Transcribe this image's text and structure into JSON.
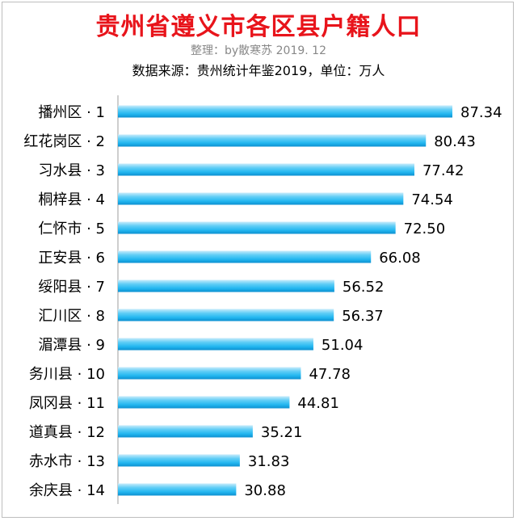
{
  "header": {
    "title": "贵州省遵义市各区县户籍人口",
    "subtitle": "整理：by散寒苏 2019. 12",
    "source": "数据来源：贵州统计年鉴2019，单位：万人"
  },
  "colors": {
    "title": "#e8141b",
    "bar_light": "#c9ecfb",
    "bar_mid": "#23b7f0",
    "bar_dark": "#0c8fd0",
    "axis": "#9e9e9e"
  },
  "chart_data": {
    "type": "bar",
    "orientation": "horizontal",
    "title": "贵州省遵义市各区县户籍人口",
    "xlabel": "",
    "ylabel": "",
    "xlim": [
      0,
      87.34
    ],
    "grid": false,
    "legend": "none",
    "categories": [
      "播州区 · 1",
      "红花岗区 · 2",
      "习水县 · 3",
      "桐梓县 · 4",
      "仁怀市 · 5",
      "正安县 · 6",
      "绥阳县 · 7",
      "汇川区 · 8",
      "湄潭县 · 9",
      "务川县 · 10",
      "凤冈县 · 11",
      "道真县 · 12",
      "赤水市 · 13",
      "余庆县 · 14"
    ],
    "values": [
      87.34,
      80.43,
      77.42,
      74.54,
      72.5,
      66.08,
      56.52,
      56.37,
      51.04,
      47.78,
      44.81,
      35.21,
      31.83,
      30.88
    ],
    "value_labels": [
      "87.34",
      "80.43",
      "77.42",
      "74.54",
      "72.50",
      "66.08",
      "56.52",
      "56.37",
      "51.04",
      "47.78",
      "44.81",
      "35.21",
      "31.83",
      "30.88"
    ]
  }
}
